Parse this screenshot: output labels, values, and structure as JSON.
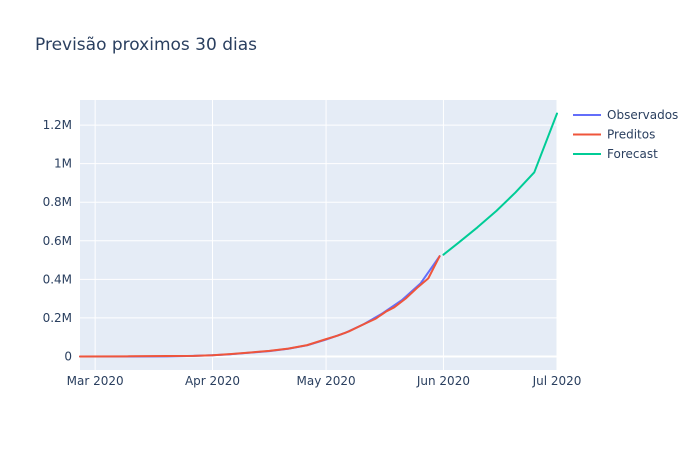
{
  "chart_data": {
    "type": "line",
    "title": "Previsão proximos 30 dias",
    "xlabel": "",
    "ylabel": "",
    "xlim": [
      "2020-02-26",
      "2020-07-01"
    ],
    "ylim": [
      -70000,
      1330000
    ],
    "x_ticks": [
      {
        "date": "2020-03-01",
        "label": "Mar 2020"
      },
      {
        "date": "2020-04-01",
        "label": "Apr 2020"
      },
      {
        "date": "2020-05-01",
        "label": "May 2020"
      },
      {
        "date": "2020-06-01",
        "label": "Jun 2020"
      },
      {
        "date": "2020-07-01",
        "label": "Jul 2020"
      }
    ],
    "y_ticks": [
      {
        "value": 0,
        "label": "0"
      },
      {
        "value": 200000,
        "label": "0.2M"
      },
      {
        "value": 400000,
        "label": "0.4M"
      },
      {
        "value": 600000,
        "label": "0.6M"
      },
      {
        "value": 800000,
        "label": "0.8M"
      },
      {
        "value": 1000000,
        "label": "1M"
      },
      {
        "value": 1200000,
        "label": "1.2M"
      }
    ],
    "grid": true,
    "legend_position": "top-right",
    "background_color": "#e5ecf6",
    "series": [
      {
        "name": "Observados",
        "color": "#636efa",
        "points": [
          {
            "x": "2020-02-26",
            "y": 0
          },
          {
            "x": "2020-03-10",
            "y": 30
          },
          {
            "x": "2020-03-20",
            "y": 900
          },
          {
            "x": "2020-03-27",
            "y": 3400
          },
          {
            "x": "2020-04-01",
            "y": 6800
          },
          {
            "x": "2020-04-06",
            "y": 12000
          },
          {
            "x": "2020-04-11",
            "y": 20000
          },
          {
            "x": "2020-04-16",
            "y": 28000
          },
          {
            "x": "2020-04-21",
            "y": 40000
          },
          {
            "x": "2020-04-26",
            "y": 58000
          },
          {
            "x": "2020-05-01",
            "y": 88000
          },
          {
            "x": "2020-05-06",
            "y": 122000
          },
          {
            "x": "2020-05-11",
            "y": 168000
          },
          {
            "x": "2020-05-16",
            "y": 225000
          },
          {
            "x": "2020-05-21",
            "y": 292000
          },
          {
            "x": "2020-05-26",
            "y": 380000
          },
          {
            "x": "2020-05-31",
            "y": 520000
          }
        ]
      },
      {
        "name": "Preditos",
        "color": "#ef553b",
        "points": [
          {
            "x": "2020-02-26",
            "y": 0
          },
          {
            "x": "2020-03-10",
            "y": 1000
          },
          {
            "x": "2020-03-20",
            "y": 2500
          },
          {
            "x": "2020-03-27",
            "y": 3500
          },
          {
            "x": "2020-04-01",
            "y": 6800
          },
          {
            "x": "2020-04-06",
            "y": 13000
          },
          {
            "x": "2020-04-11",
            "y": 21000
          },
          {
            "x": "2020-04-16",
            "y": 29000
          },
          {
            "x": "2020-04-21",
            "y": 41000
          },
          {
            "x": "2020-04-26",
            "y": 59000
          },
          {
            "x": "2020-05-01",
            "y": 90000
          },
          {
            "x": "2020-05-04",
            "y": 108000
          },
          {
            "x": "2020-05-07",
            "y": 130000
          },
          {
            "x": "2020-05-11",
            "y": 168000
          },
          {
            "x": "2020-05-14",
            "y": 195000
          },
          {
            "x": "2020-05-17",
            "y": 235000
          },
          {
            "x": "2020-05-19",
            "y": 255000
          },
          {
            "x": "2020-05-22",
            "y": 300000
          },
          {
            "x": "2020-05-25",
            "y": 355000
          },
          {
            "x": "2020-05-28",
            "y": 405000
          },
          {
            "x": "2020-05-31",
            "y": 520000
          }
        ]
      },
      {
        "name": "Forecast",
        "color": "#00cc96",
        "points": [
          {
            "x": "2020-06-01",
            "y": 528000
          },
          {
            "x": "2020-06-05",
            "y": 590000
          },
          {
            "x": "2020-06-10",
            "y": 670000
          },
          {
            "x": "2020-06-15",
            "y": 755000
          },
          {
            "x": "2020-06-20",
            "y": 850000
          },
          {
            "x": "2020-06-25",
            "y": 955000
          },
          {
            "x": "2020-07-01",
            "y": 1260000
          }
        ]
      }
    ]
  }
}
